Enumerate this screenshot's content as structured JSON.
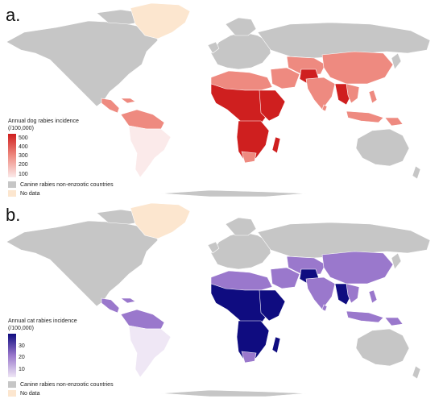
{
  "colors": {
    "land": "#c6c6c6",
    "border": "#ffffff",
    "no_data": "#fce6cf",
    "dog_low": "#fbeaea",
    "dog_mid": "#ee8a80",
    "dog_high": "#cf1f1f",
    "cat_low": "#efe7f5",
    "cat_mid": "#9a78cc",
    "cat_high": "#0f0c80"
  },
  "panels": [
    {
      "label": "a.",
      "legend": {
        "title_line1": "Annual dog rabies incidence",
        "title_line2": "(/100,000)",
        "ticks": [
          "500",
          "400",
          "300",
          "200",
          "100"
        ],
        "tick_values": [
          500,
          400,
          300,
          200,
          100
        ],
        "range": [
          60,
          540
        ],
        "non_enzootic_label": "Canine rabies non-enzootic countries",
        "no_data_label": "No data"
      }
    },
    {
      "label": "b.",
      "legend": {
        "title_line1": "Annual cat rabies incidence",
        "title_line2": "(/100,000)",
        "ticks": [
          "30",
          "20",
          "10"
        ],
        "tick_values": [
          30,
          20,
          10
        ],
        "range": [
          3,
          40
        ],
        "non_enzootic_label": "Canine rabies non-enzootic countries",
        "no_data_label": "No data"
      }
    }
  ]
}
